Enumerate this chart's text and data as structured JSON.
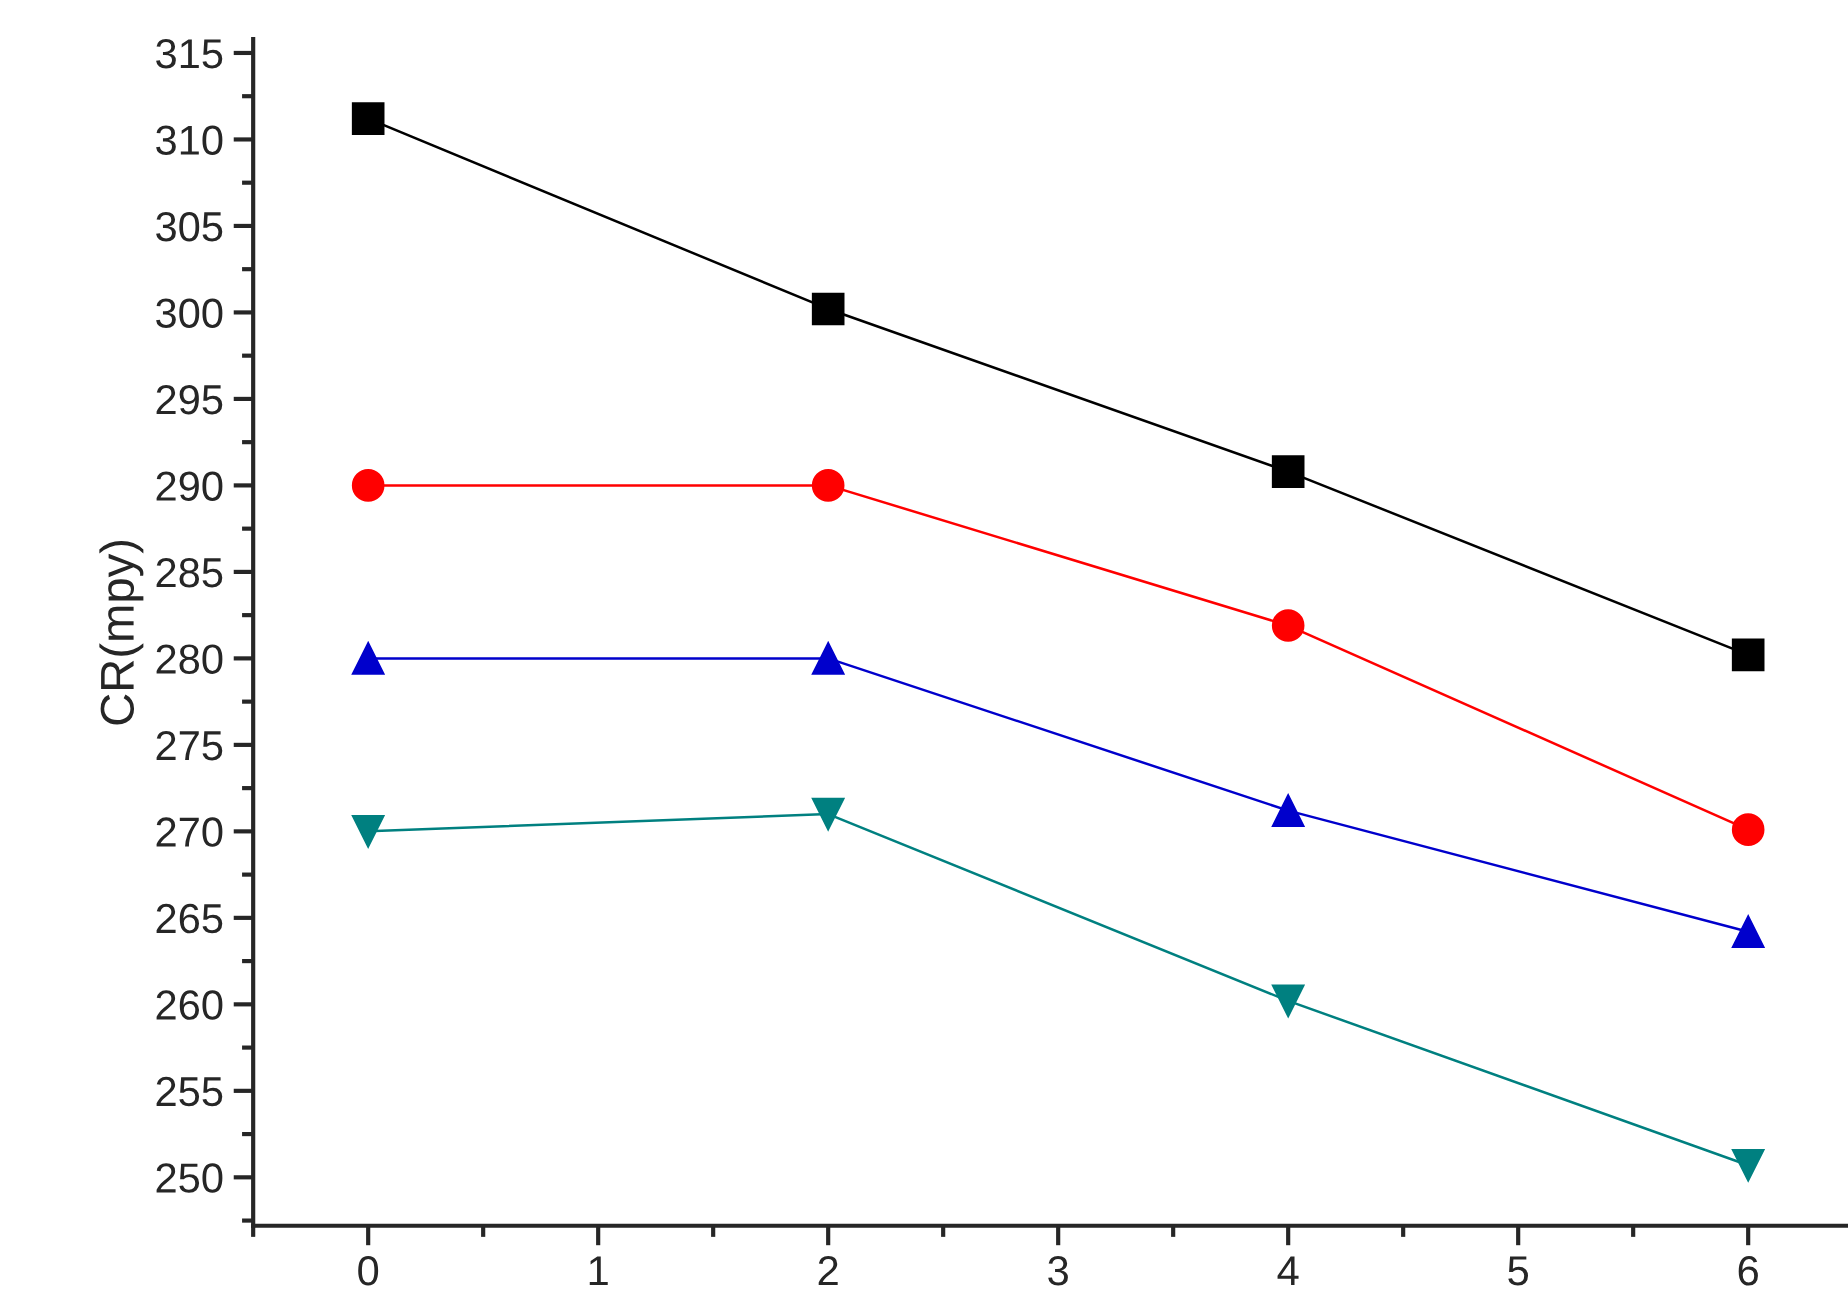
{
  "chart_data": {
    "type": "line",
    "ylabel": "CR(mpy)",
    "x": [
      0,
      2,
      4,
      6
    ],
    "series": [
      {
        "color": "#000000",
        "marker": "square",
        "values": [
          311.2,
          300.2,
          290.8,
          280.2
        ]
      },
      {
        "color": "#ff0000",
        "marker": "circle",
        "values": [
          290,
          290,
          281.9,
          270.1
        ]
      },
      {
        "color": "#0000cc",
        "marker": "triangle",
        "values": [
          280,
          280,
          271.2,
          264.2
        ]
      },
      {
        "color": "#008080",
        "marker": "triangle_down",
        "values": [
          270,
          271,
          260.2,
          250.7
        ]
      }
    ],
    "xlim": [
      -0.5,
      6.43
    ],
    "ylim": [
      247.2,
      315.8
    ],
    "xticks": [
      {
        "value": -0.5,
        "label": null
      },
      0,
      {
        "value": 0.5,
        "label": null
      },
      1,
      {
        "value": 1.5,
        "label": null
      },
      2,
      {
        "value": 2.5,
        "label": null
      },
      3,
      {
        "value": 3.5,
        "label": null
      },
      4,
      {
        "value": 4.5,
        "label": null
      },
      5,
      {
        "value": 5.5,
        "label": null
      },
      6
    ],
    "yticks": [
      {
        "value": 247.5,
        "label": null
      },
      250,
      {
        "value": 252.5,
        "label": null
      },
      255,
      {
        "value": 257.5,
        "label": null
      },
      260,
      {
        "value": 262.5,
        "label": null
      },
      265,
      {
        "value": 267.5,
        "label": null
      },
      270,
      {
        "value": 272.5,
        "label": null
      },
      275,
      {
        "value": 277.5,
        "label": null
      },
      280,
      {
        "value": 282.5,
        "label": null
      },
      285,
      {
        "value": 287.5,
        "label": null
      },
      290,
      {
        "value": 292.5,
        "label": null
      },
      295,
      {
        "value": 297.5,
        "label": null
      },
      300,
      {
        "value": 302.5,
        "label": null
      },
      305,
      {
        "value": 307.5,
        "label": null
      },
      310,
      {
        "value": 312.5,
        "label": null
      },
      315
    ],
    "grid": false,
    "legend": false,
    "line_style": "solid"
  }
}
